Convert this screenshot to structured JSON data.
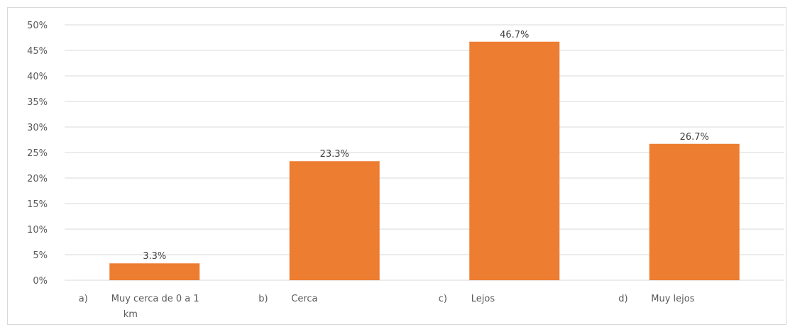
{
  "chart_data": {
    "type": "bar",
    "categories": [
      {
        "prefix": "a)",
        "lines": [
          "Muy cerca de 0 a 1",
          "km"
        ]
      },
      {
        "prefix": "b)",
        "lines": [
          "Cerca"
        ]
      },
      {
        "prefix": "c)",
        "lines": [
          "Lejos"
        ]
      },
      {
        "prefix": "d)",
        "lines": [
          "Muy lejos"
        ]
      }
    ],
    "values": [
      3.3,
      23.3,
      46.7,
      26.7
    ],
    "value_labels": [
      "3.3%",
      "23.3%",
      "46.7%",
      "26.7%"
    ],
    "ylim": [
      0,
      50
    ],
    "yticks": [
      "0%",
      "5%",
      "10%",
      "15%",
      "20%",
      "25%",
      "30%",
      "35%",
      "40%",
      "45%",
      "50%"
    ],
    "grid": true,
    "bar_color": "#ED7D31",
    "gridline_color": "#D9D9D9",
    "text_color": "#595959"
  }
}
